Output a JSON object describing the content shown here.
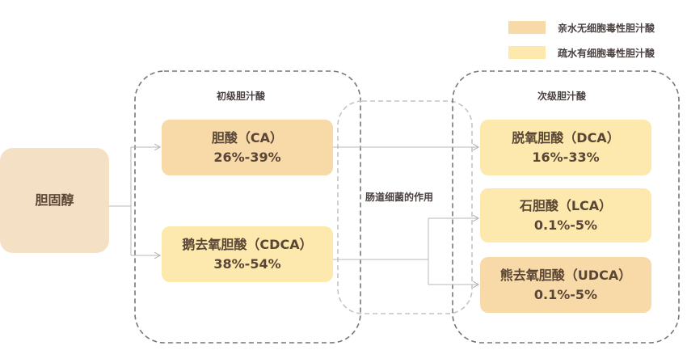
{
  "colors": {
    "hydrophilic": "#f8d9a8",
    "hydrophobic": "#fde9ad",
    "cholesterol": "#f4e1c5",
    "line": "#b8b8b8"
  },
  "legend": [
    {
      "label": "亲水无细胞毒性胆汁酸",
      "color": "#f8d9a8"
    },
    {
      "label": "疏水有细胞毒性胆汁酸",
      "color": "#fde9ad"
    }
  ],
  "source": {
    "label": "胆固醇"
  },
  "primary": {
    "title": "初级胆汁酸",
    "items": [
      {
        "name": "胆酸（CA）",
        "range": "26%-39%"
      },
      {
        "name": "鹅去氧胆酸（CDCA）",
        "range": "38%-54%"
      }
    ]
  },
  "bacteria": {
    "label": "肠道细菌的作用"
  },
  "secondary": {
    "title": "次级胆汁酸",
    "items": [
      {
        "name": "脱氧胆酸（DCA）",
        "range": "16%-33%"
      },
      {
        "name": "石胆酸（LCA）",
        "range": "0.1%-5%"
      },
      {
        "name": "熊去氧胆酸（UDCA）",
        "range": "0.1%-5%"
      }
    ]
  }
}
